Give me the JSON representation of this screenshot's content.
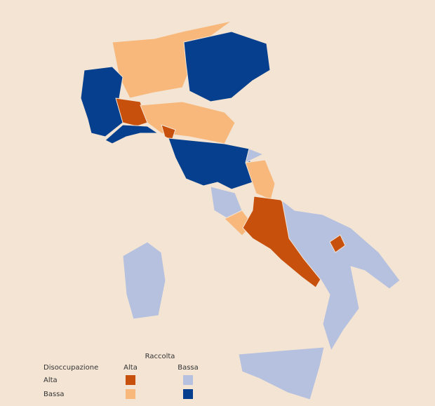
{
  "legend": {
    "title": "Raccolta",
    "row_title": "Disoccupazione",
    "columns": [
      "Alta",
      "Bassa"
    ],
    "rows": [
      "Alta",
      "Bassa"
    ],
    "colors": [
      [
        "#c8500d",
        "#b5c1df"
      ],
      [
        "#f8b87b",
        "#053f8d"
      ]
    ]
  }
}
